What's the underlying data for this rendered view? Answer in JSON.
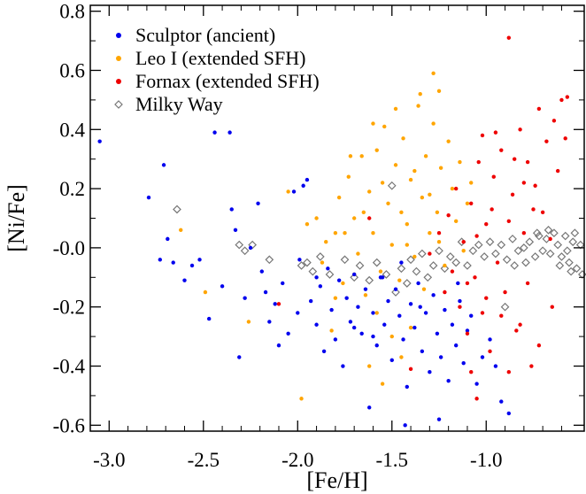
{
  "chart_data": {
    "type": "scatter",
    "title": "",
    "xlabel": "[Fe/H]",
    "ylabel": "[Ni/Fe]",
    "xlim": [
      -3.1,
      -0.48
    ],
    "ylim": [
      -0.62,
      0.82
    ],
    "xticks": [
      -3.0,
      -2.5,
      -2.0,
      -1.5,
      -1.0
    ],
    "xtick_labels": [
      "-3.0",
      "-2.5",
      "-2.0",
      "-1.5",
      "-1.0"
    ],
    "yticks": [
      -0.6,
      -0.4,
      -0.2,
      0.0,
      0.2,
      0.4,
      0.6,
      0.8
    ],
    "ytick_labels": [
      "-0.6",
      "-0.4",
      "-0.2",
      "-0.0",
      "0.2",
      "0.4",
      "0.6",
      "0.8"
    ],
    "grid": false,
    "legend": "top-left",
    "series": [
      {
        "name": "Sculptor (ancient)",
        "color": "#0000ee",
        "marker": "filled-circle",
        "points": [
          [
            -3.05,
            0.36
          ],
          [
            -2.79,
            0.17
          ],
          [
            -2.71,
            0.28
          ],
          [
            -2.69,
            0.03
          ],
          [
            -2.66,
            -0.05
          ],
          [
            -2.73,
            -0.04
          ],
          [
            -2.6,
            -0.11
          ],
          [
            -2.56,
            -0.06
          ],
          [
            -2.52,
            -0.04
          ],
          [
            -2.47,
            -0.24
          ],
          [
            -2.44,
            0.39
          ],
          [
            -2.4,
            -0.13
          ],
          [
            -2.36,
            0.39
          ],
          [
            -2.35,
            0.13
          ],
          [
            -2.33,
            0.06
          ],
          [
            -2.31,
            -0.37
          ],
          [
            -2.28,
            -0.17
          ],
          [
            -2.25,
            0.0
          ],
          [
            -2.21,
            0.15
          ],
          [
            -2.19,
            -0.08
          ],
          [
            -2.17,
            -0.15
          ],
          [
            -2.15,
            -0.25
          ],
          [
            -2.12,
            -0.19
          ],
          [
            -2.1,
            -0.33
          ],
          [
            -2.08,
            -0.12
          ],
          [
            -2.05,
            -0.29
          ],
          [
            -2.02,
            0.19
          ],
          [
            -1.99,
            -0.04
          ],
          [
            -1.97,
            0.21
          ],
          [
            -1.95,
            0.23
          ],
          [
            -1.93,
            -0.18
          ],
          [
            -1.9,
            -0.26
          ],
          [
            -1.88,
            -0.13
          ],
          [
            -1.86,
            -0.35
          ],
          [
            -1.84,
            -0.07
          ],
          [
            -1.82,
            -0.21
          ],
          [
            -1.8,
            -0.31
          ],
          [
            -1.78,
            -0.11
          ],
          [
            -1.76,
            -0.4
          ],
          [
            -1.74,
            -0.17
          ],
          [
            -1.72,
            -0.25
          ],
          [
            -1.7,
            -0.09
          ],
          [
            -1.68,
            -0.2
          ],
          [
            -1.66,
            -0.29
          ],
          [
            -1.64,
            -0.14
          ],
          [
            -1.62,
            -0.54
          ],
          [
            -1.6,
            -0.22
          ],
          [
            -1.58,
            -0.33
          ],
          [
            -1.56,
            -0.1
          ],
          [
            -1.54,
            -0.26
          ],
          [
            -1.52,
            -0.18
          ],
          [
            -1.5,
            -0.38
          ],
          [
            -1.48,
            -0.14
          ],
          [
            -1.46,
            -0.23
          ],
          [
            -1.44,
            -0.31
          ],
          [
            -1.42,
            -0.47
          ],
          [
            -1.4,
            -0.19
          ],
          [
            -1.38,
            -0.27
          ],
          [
            -1.36,
            -0.12
          ],
          [
            -1.34,
            -0.35
          ],
          [
            -1.32,
            -0.22
          ],
          [
            -1.3,
            -0.42
          ],
          [
            -1.28,
            -0.16
          ],
          [
            -1.26,
            -0.29
          ],
          [
            -1.24,
            -0.37
          ],
          [
            -1.22,
            -0.21
          ],
          [
            -1.2,
            -0.45
          ],
          [
            -1.18,
            -0.26
          ],
          [
            -1.16,
            -0.33
          ],
          [
            -1.14,
            -0.18
          ],
          [
            -1.12,
            -0.39
          ],
          [
            -1.1,
            -0.28
          ],
          [
            -1.08,
            -0.23
          ],
          [
            -1.05,
            -0.46
          ],
          [
            -1.02,
            -0.37
          ],
          [
            -0.98,
            -0.31
          ],
          [
            -0.95,
            -0.4
          ],
          [
            -0.92,
            -0.52
          ],
          [
            -0.88,
            -0.56
          ],
          [
            -1.25,
            -0.58
          ],
          [
            -1.43,
            -0.6
          ],
          [
            -1.55,
            -0.1
          ],
          [
            -1.7,
            -0.27
          ],
          [
            -1.9,
            -0.1
          ],
          [
            -2.0,
            -0.22
          ],
          [
            -1.6,
            -0.3
          ],
          [
            -1.35,
            -0.2
          ],
          [
            -1.15,
            -0.12
          ],
          [
            -1.45,
            -0.05
          ]
        ]
      },
      {
        "name": "Leo I (extended SFH)",
        "color": "#ffa500",
        "marker": "filled-circle",
        "points": [
          [
            -2.62,
            0.06
          ],
          [
            -2.49,
            -0.15
          ],
          [
            -2.26,
            -0.25
          ],
          [
            -2.05,
            0.19
          ],
          [
            -1.98,
            -0.51
          ],
          [
            -1.95,
            0.08
          ],
          [
            -1.9,
            0.1
          ],
          [
            -1.87,
            -0.05
          ],
          [
            -1.85,
            0.02
          ],
          [
            -1.82,
            -0.28
          ],
          [
            -1.8,
            0.05
          ],
          [
            -1.78,
            0.17
          ],
          [
            -1.76,
            -0.12
          ],
          [
            -1.73,
            0.24
          ],
          [
            -1.7,
            0.1
          ],
          [
            -1.68,
            -0.02
          ],
          [
            -1.66,
            0.31
          ],
          [
            -1.64,
            -0.16
          ],
          [
            -1.62,
            0.19
          ],
          [
            -1.6,
            0.05
          ],
          [
            -1.58,
            0.33
          ],
          [
            -1.56,
            -0.08
          ],
          [
            -1.54,
            0.41
          ],
          [
            -1.52,
            0.15
          ],
          [
            -1.5,
            0.01
          ],
          [
            -1.48,
            0.28
          ],
          [
            -1.46,
            -0.11
          ],
          [
            -1.44,
            0.37
          ],
          [
            -1.42,
            0.08
          ],
          [
            -1.4,
            0.23
          ],
          [
            -1.38,
            -0.03
          ],
          [
            -1.36,
            0.48
          ],
          [
            -1.34,
            0.17
          ],
          [
            -1.32,
            0.31
          ],
          [
            -1.3,
            0.05
          ],
          [
            -1.28,
            0.42
          ],
          [
            -1.26,
            0.12
          ],
          [
            -1.24,
            0.27
          ],
          [
            -1.22,
            -0.06
          ],
          [
            -1.2,
            0.36
          ],
          [
            -1.18,
            0.2
          ],
          [
            -1.16,
            0.09
          ],
          [
            -1.14,
            0.29
          ],
          [
            -1.12,
            -0.01
          ],
          [
            -1.1,
            0.15
          ],
          [
            -1.08,
            0.22
          ],
          [
            -1.28,
            0.59
          ],
          [
            -1.25,
            0.53
          ],
          [
            -1.35,
            0.52
          ],
          [
            -1.48,
            0.47
          ],
          [
            -1.6,
            0.42
          ],
          [
            -1.72,
            0.31
          ],
          [
            -1.55,
            0.22
          ],
          [
            -1.45,
            0.12
          ],
          [
            -1.38,
            0.26
          ],
          [
            -1.3,
            0.18
          ],
          [
            -1.65,
            0.12
          ],
          [
            -1.75,
            0.05
          ],
          [
            -1.58,
            -0.22
          ],
          [
            -1.5,
            -0.3
          ],
          [
            -1.4,
            -0.27
          ],
          [
            -1.62,
            -0.4
          ],
          [
            -1.55,
            -0.46
          ],
          [
            -1.45,
            -0.37
          ],
          [
            -1.8,
            -0.17
          ],
          [
            -1.7,
            -0.09
          ],
          [
            -1.42,
            0.01
          ],
          [
            -1.33,
            -0.14
          ],
          [
            -1.25,
            0.02
          ]
        ]
      },
      {
        "name": "Fornax (extended SFH)",
        "color": "#ee0000",
        "marker": "filled-circle",
        "points": [
          [
            -2.1,
            -0.19
          ],
          [
            -1.62,
            0.1
          ],
          [
            -1.4,
            -0.41
          ],
          [
            -1.3,
            -0.02
          ],
          [
            -1.25,
            0.05
          ],
          [
            -1.22,
            -0.15
          ],
          [
            -1.2,
            0.11
          ],
          [
            -1.18,
            -0.08
          ],
          [
            -1.16,
            0.2
          ],
          [
            -1.14,
            -0.2
          ],
          [
            -1.12,
            0.02
          ],
          [
            -1.1,
            -0.29
          ],
          [
            -1.08,
            0.15
          ],
          [
            -1.06,
            -0.1
          ],
          [
            -1.04,
            0.29
          ],
          [
            -1.02,
            -0.22
          ],
          [
            -1.0,
            0.08
          ],
          [
            -0.98,
            -0.35
          ],
          [
            -0.96,
            0.24
          ],
          [
            -0.94,
            -0.05
          ],
          [
            -0.92,
            0.33
          ],
          [
            -0.9,
            -0.15
          ],
          [
            -0.88,
            0.71
          ],
          [
            -0.86,
            0.18
          ],
          [
            -0.84,
            -0.28
          ],
          [
            -0.82,
            0.4
          ],
          [
            -0.8,
            0.05
          ],
          [
            -0.78,
            0.29
          ],
          [
            -0.76,
            -0.4
          ],
          [
            -0.74,
            0.21
          ],
          [
            -0.72,
            0.47
          ],
          [
            -0.7,
            0.12
          ],
          [
            -0.68,
            0.36
          ],
          [
            -0.66,
            0.03
          ],
          [
            -0.64,
            0.43
          ],
          [
            -0.62,
            0.26
          ],
          [
            -0.6,
            0.5
          ],
          [
            -0.58,
            0.37
          ],
          [
            -0.57,
            0.51
          ],
          [
            -0.95,
            0.39
          ],
          [
            -1.02,
            0.38
          ],
          [
            -0.85,
            0.3
          ],
          [
            -0.8,
            0.22
          ],
          [
            -0.75,
            0.13
          ],
          [
            -0.88,
            0.09
          ],
          [
            -0.97,
            0.13
          ],
          [
            -1.05,
            0.04
          ],
          [
            -1.1,
            -0.12
          ],
          [
            -1.0,
            -0.17
          ],
          [
            -0.92,
            -0.23
          ],
          [
            -0.82,
            -0.26
          ],
          [
            -0.78,
            -0.12
          ],
          [
            -1.08,
            -0.42
          ],
          [
            -0.88,
            -0.42
          ],
          [
            -1.05,
            -0.51
          ],
          [
            -0.72,
            -0.33
          ],
          [
            -0.65,
            -0.2
          ]
        ]
      },
      {
        "name": "Milky Way",
        "color": "#777777",
        "marker": "open-diamond",
        "points": [
          [
            -2.64,
            0.13
          ],
          [
            -2.31,
            0.01
          ],
          [
            -2.28,
            -0.01
          ],
          [
            -2.24,
            0.01
          ],
          [
            -2.15,
            -0.04
          ],
          [
            -1.98,
            -0.06
          ],
          [
            -1.95,
            -0.05
          ],
          [
            -1.92,
            -0.08
          ],
          [
            -1.88,
            -0.03
          ],
          [
            -1.83,
            -0.09
          ],
          [
            -1.75,
            -0.04
          ],
          [
            -1.7,
            -0.1
          ],
          [
            -1.67,
            -0.06
          ],
          [
            -1.62,
            -0.11
          ],
          [
            -1.58,
            -0.05
          ],
          [
            -1.53,
            -0.09
          ],
          [
            -1.5,
            0.21
          ],
          [
            -1.48,
            -0.15
          ],
          [
            -1.45,
            -0.07
          ],
          [
            -1.42,
            -0.12
          ],
          [
            -1.4,
            -0.04
          ],
          [
            -1.37,
            -0.08
          ],
          [
            -1.34,
            -0.02
          ],
          [
            -1.31,
            -0.1
          ],
          [
            -1.28,
            -0.06
          ],
          [
            -1.25,
            -0.01
          ],
          [
            -1.22,
            -0.07
          ],
          [
            -1.19,
            -0.03
          ],
          [
            -1.16,
            -0.05
          ],
          [
            -1.13,
            0.02
          ],
          [
            -1.1,
            -0.06
          ],
          [
            -1.07,
            -0.01
          ],
          [
            -1.04,
            0.01
          ],
          [
            -1.01,
            -0.03
          ],
          [
            -0.98,
            0.02
          ],
          [
            -0.95,
            -0.02
          ],
          [
            -0.92,
            0.01
          ],
          [
            -0.89,
            -0.04
          ],
          [
            -0.86,
            0.03
          ],
          [
            -0.83,
            -0.01
          ],
          [
            -0.8,
            0.0
          ],
          [
            -0.77,
            0.02
          ],
          [
            -0.74,
            -0.03
          ],
          [
            -0.72,
            0.04
          ],
          [
            -0.7,
            -0.01
          ],
          [
            -0.68,
            0.03
          ],
          [
            -0.66,
            -0.02
          ],
          [
            -0.64,
            0.05
          ],
          [
            -0.62,
            0.01
          ],
          [
            -0.6,
            -0.03
          ],
          [
            -0.58,
            0.04
          ],
          [
            -0.56,
            -0.05
          ],
          [
            -0.54,
            0.02
          ],
          [
            -0.52,
            -0.07
          ],
          [
            -0.5,
            0.01
          ],
          [
            -0.49,
            -0.09
          ],
          [
            -0.55,
            -0.08
          ],
          [
            -0.61,
            -0.06
          ],
          [
            -0.67,
            0.06
          ],
          [
            -0.73,
            0.05
          ],
          [
            -0.79,
            -0.05
          ],
          [
            -0.85,
            -0.06
          ],
          [
            -0.9,
            -0.2
          ],
          [
            -0.53,
            0.05
          ],
          [
            -0.57,
            -0.01
          ]
        ]
      }
    ]
  }
}
